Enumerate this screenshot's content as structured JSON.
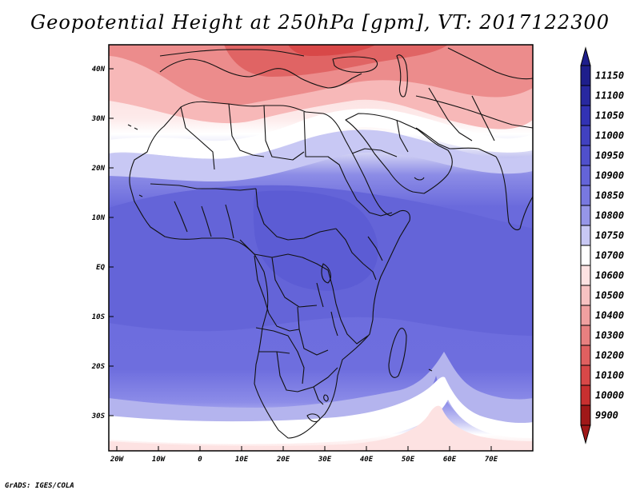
{
  "title": "Geopotential Height at 250hPa [gpm], VT: 2017122300",
  "credit": "GrADS: IGES/COLA",
  "lat_labels": [
    "40N",
    "30N",
    "20N",
    "10N",
    "EQ",
    "10S",
    "20S",
    "30S"
  ],
  "lon_labels": [
    "20W",
    "10W",
    "0",
    "10E",
    "20E",
    "30E",
    "40E",
    "50E",
    "60E",
    "70E"
  ],
  "map": {
    "lon_range": [
      -22,
      80
    ],
    "lat_range": [
      -37,
      45
    ],
    "units": "gpm",
    "region": "Africa, Middle East, Western Asia"
  },
  "colorbar": {
    "labels": [
      "11150",
      "11100",
      "11050",
      "11000",
      "10950",
      "10900",
      "10850",
      "10800",
      "10750",
      "10700",
      "10600",
      "10500",
      "10400",
      "10300",
      "10200",
      "10100",
      "10000",
      "9900"
    ],
    "colors": [
      "#1e1e8c",
      "#2828a0",
      "#3232b4",
      "#4141c0",
      "#5050cc",
      "#6464d8",
      "#7878e0",
      "#9696e8",
      "#c8c8f4",
      "#ffffff",
      "#fde2e2",
      "#f7c2c2",
      "#f0a0a0",
      "#e88080",
      "#e06060",
      "#d84848",
      "#c83030",
      "#a01818"
    ]
  }
}
